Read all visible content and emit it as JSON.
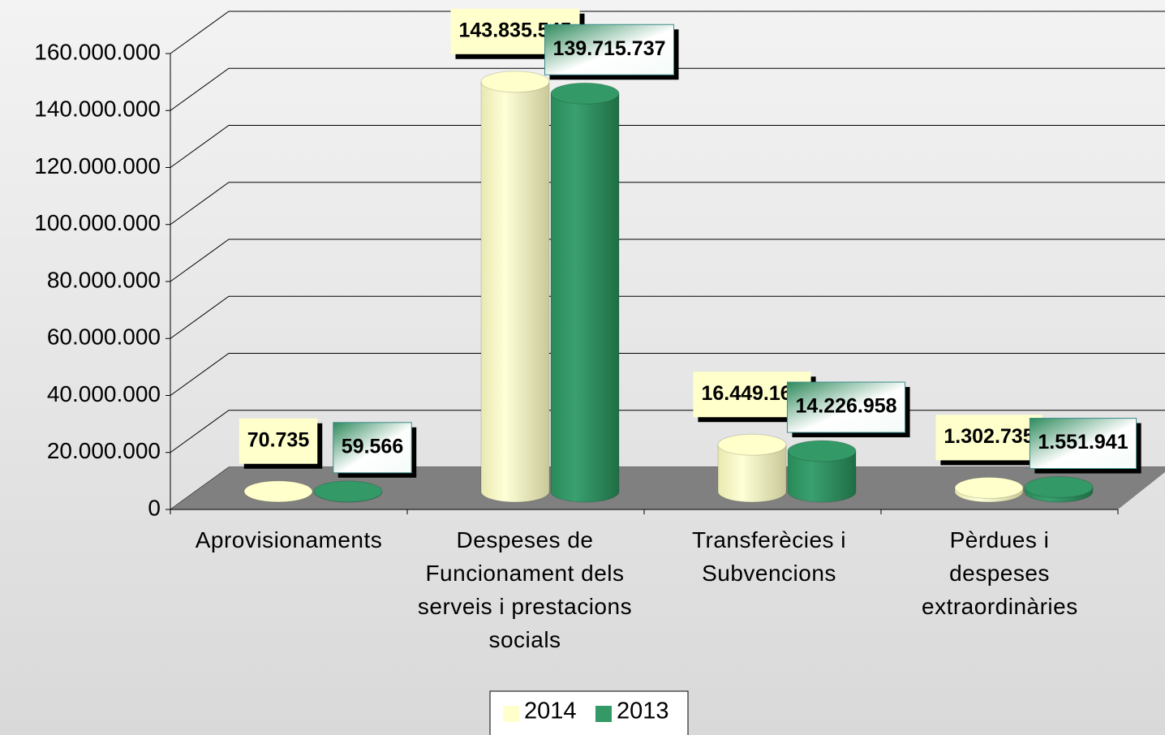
{
  "chart_data": {
    "type": "bar3d",
    "categories": [
      "Aprovisionaments",
      "Despeses de Funcionament dels serveis i prestacions socials",
      "Transferècies i Subvencions",
      "Pèrdues i despeses extraordinàries"
    ],
    "series": [
      {
        "name": "2014",
        "color": "#ffffcc",
        "values": [
          70735,
          143835545,
          16449164,
          1302735
        ],
        "value_labels": [
          "70.735",
          "143.835.545",
          "16.449.164",
          "1.302.735"
        ]
      },
      {
        "name": "2013",
        "color": "#339966",
        "values": [
          59566,
          139715737,
          14226958,
          1551941
        ],
        "value_labels": [
          "59.566",
          "139.715.737",
          "14.226.958",
          "1.551.941"
        ]
      }
    ],
    "ylim": [
      0,
      160000000
    ],
    "yticks": [
      0,
      {
        "value": 20000000,
        "label": "20.000.000"
      },
      {
        "value": 40000000,
        "label": "40.000.000"
      },
      {
        "value": 60000000,
        "label": "60.000.000"
      },
      {
        "value": 80000000,
        "label": "80.000.000"
      },
      {
        "value": 100000000,
        "label": "100.000.000"
      },
      {
        "value": 120000000,
        "label": "120.000.000"
      },
      {
        "value": 140000000,
        "label": "140.000.000"
      },
      {
        "value": 160000000,
        "label": "160.000.000"
      }
    ],
    "grid": true,
    "legend": "bottom"
  }
}
